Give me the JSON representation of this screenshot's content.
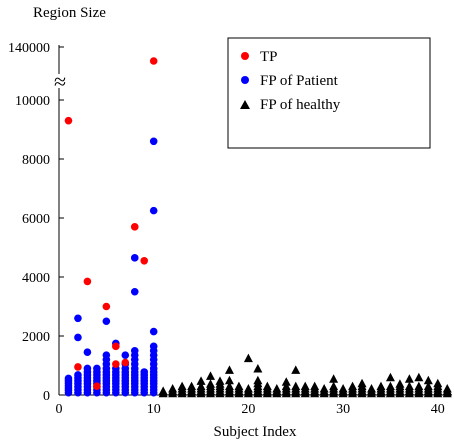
{
  "chart_data": {
    "type": "scatter",
    "title": "",
    "ylabel": "Region Size",
    "xlabel": "Subject Index",
    "xlim": [
      0,
      41.5
    ],
    "ylim": [
      0,
      11000
    ],
    "y_break": {
      "symbol": "≈",
      "upper_tick_value": 140000,
      "upper_tick_label": "140000"
    },
    "x_ticks": [
      0,
      10,
      20,
      30,
      40
    ],
    "x_tick_labels": [
      "0",
      "10",
      "20",
      "30",
      "40"
    ],
    "y_ticks": [
      0,
      2000,
      4000,
      6000,
      8000,
      10000
    ],
    "y_tick_labels": [
      "0",
      "2000",
      "4000",
      "6000",
      "8000",
      "10000"
    ],
    "legend_position": "top-right",
    "series": [
      {
        "name": "TP",
        "marker": "circle",
        "color": "#ff0000",
        "points": [
          {
            "x": 1,
            "y": 9300
          },
          {
            "x": 2,
            "y": 950
          },
          {
            "x": 3,
            "y": 3850
          },
          {
            "x": 4,
            "y": 300
          },
          {
            "x": 5,
            "y": 3000
          },
          {
            "x": 6,
            "y": 1050
          },
          {
            "x": 6,
            "y": 1650
          },
          {
            "x": 7,
            "y": 1100
          },
          {
            "x": 8,
            "y": 5700
          },
          {
            "x": 9,
            "y": 4550
          },
          {
            "x": 10,
            "y": 135000
          }
        ]
      },
      {
        "name": "FP of Patient",
        "marker": "circle",
        "color": "#0000ff",
        "points": [
          {
            "x": 1,
            "y": 80
          },
          {
            "x": 1,
            "y": 160
          },
          {
            "x": 1,
            "y": 240
          },
          {
            "x": 1,
            "y": 320
          },
          {
            "x": 1,
            "y": 400
          },
          {
            "x": 1,
            "y": 480
          },
          {
            "x": 1,
            "y": 560
          },
          {
            "x": 2,
            "y": 80
          },
          {
            "x": 2,
            "y": 180
          },
          {
            "x": 2,
            "y": 280
          },
          {
            "x": 2,
            "y": 380
          },
          {
            "x": 2,
            "y": 480
          },
          {
            "x": 2,
            "y": 580
          },
          {
            "x": 2,
            "y": 680
          },
          {
            "x": 2,
            "y": 1950
          },
          {
            "x": 2,
            "y": 2600
          },
          {
            "x": 3,
            "y": 80
          },
          {
            "x": 3,
            "y": 180
          },
          {
            "x": 3,
            "y": 280
          },
          {
            "x": 3,
            "y": 380
          },
          {
            "x": 3,
            "y": 480
          },
          {
            "x": 3,
            "y": 580
          },
          {
            "x": 3,
            "y": 680
          },
          {
            "x": 3,
            "y": 780
          },
          {
            "x": 3,
            "y": 900
          },
          {
            "x": 3,
            "y": 1450
          },
          {
            "x": 4,
            "y": 80
          },
          {
            "x": 4,
            "y": 180
          },
          {
            "x": 4,
            "y": 280
          },
          {
            "x": 4,
            "y": 380
          },
          {
            "x": 4,
            "y": 480
          },
          {
            "x": 4,
            "y": 580
          },
          {
            "x": 4,
            "y": 680
          },
          {
            "x": 4,
            "y": 780
          },
          {
            "x": 4,
            "y": 900
          },
          {
            "x": 5,
            "y": 80
          },
          {
            "x": 5,
            "y": 180
          },
          {
            "x": 5,
            "y": 280
          },
          {
            "x": 5,
            "y": 380
          },
          {
            "x": 5,
            "y": 480
          },
          {
            "x": 5,
            "y": 580
          },
          {
            "x": 5,
            "y": 680
          },
          {
            "x": 5,
            "y": 780
          },
          {
            "x": 5,
            "y": 900
          },
          {
            "x": 5,
            "y": 1050
          },
          {
            "x": 5,
            "y": 1200
          },
          {
            "x": 5,
            "y": 1350
          },
          {
            "x": 5,
            "y": 2500
          },
          {
            "x": 6,
            "y": 80
          },
          {
            "x": 6,
            "y": 180
          },
          {
            "x": 6,
            "y": 280
          },
          {
            "x": 6,
            "y": 380
          },
          {
            "x": 6,
            "y": 480
          },
          {
            "x": 6,
            "y": 580
          },
          {
            "x": 6,
            "y": 680
          },
          {
            "x": 6,
            "y": 780
          },
          {
            "x": 6,
            "y": 900
          },
          {
            "x": 6,
            "y": 1750
          },
          {
            "x": 7,
            "y": 80
          },
          {
            "x": 7,
            "y": 180
          },
          {
            "x": 7,
            "y": 280
          },
          {
            "x": 7,
            "y": 380
          },
          {
            "x": 7,
            "y": 480
          },
          {
            "x": 7,
            "y": 580
          },
          {
            "x": 7,
            "y": 680
          },
          {
            "x": 7,
            "y": 780
          },
          {
            "x": 7,
            "y": 900
          },
          {
            "x": 7,
            "y": 1050
          },
          {
            "x": 7,
            "y": 1350
          },
          {
            "x": 8,
            "y": 80
          },
          {
            "x": 8,
            "y": 180
          },
          {
            "x": 8,
            "y": 280
          },
          {
            "x": 8,
            "y": 380
          },
          {
            "x": 8,
            "y": 480
          },
          {
            "x": 8,
            "y": 580
          },
          {
            "x": 8,
            "y": 680
          },
          {
            "x": 8,
            "y": 780
          },
          {
            "x": 8,
            "y": 900
          },
          {
            "x": 8,
            "y": 1050
          },
          {
            "x": 8,
            "y": 1200
          },
          {
            "x": 8,
            "y": 1350
          },
          {
            "x": 8,
            "y": 1500
          },
          {
            "x": 8,
            "y": 3500
          },
          {
            "x": 8,
            "y": 4650
          },
          {
            "x": 9,
            "y": 80
          },
          {
            "x": 9,
            "y": 180
          },
          {
            "x": 9,
            "y": 280
          },
          {
            "x": 9,
            "y": 380
          },
          {
            "x": 9,
            "y": 480
          },
          {
            "x": 9,
            "y": 580
          },
          {
            "x": 9,
            "y": 680
          },
          {
            "x": 9,
            "y": 780
          },
          {
            "x": 10,
            "y": 80
          },
          {
            "x": 10,
            "y": 180
          },
          {
            "x": 10,
            "y": 280
          },
          {
            "x": 10,
            "y": 380
          },
          {
            "x": 10,
            "y": 480
          },
          {
            "x": 10,
            "y": 580
          },
          {
            "x": 10,
            "y": 680
          },
          {
            "x": 10,
            "y": 780
          },
          {
            "x": 10,
            "y": 900
          },
          {
            "x": 10,
            "y": 1050
          },
          {
            "x": 10,
            "y": 1200
          },
          {
            "x": 10,
            "y": 1350
          },
          {
            "x": 10,
            "y": 1500
          },
          {
            "x": 10,
            "y": 1650
          },
          {
            "x": 10,
            "y": 2150
          },
          {
            "x": 10,
            "y": 6250
          },
          {
            "x": 10,
            "y": 8600
          }
        ]
      },
      {
        "name": "FP of healthy",
        "marker": "triangle",
        "color": "#000000",
        "points": [
          {
            "x": 11,
            "y": 60
          },
          {
            "x": 11,
            "y": 140
          },
          {
            "x": 12,
            "y": 60
          },
          {
            "x": 12,
            "y": 140
          },
          {
            "x": 12,
            "y": 220
          },
          {
            "x": 13,
            "y": 60
          },
          {
            "x": 13,
            "y": 140
          },
          {
            "x": 13,
            "y": 220
          },
          {
            "x": 13,
            "y": 300
          },
          {
            "x": 14,
            "y": 60
          },
          {
            "x": 14,
            "y": 140
          },
          {
            "x": 14,
            "y": 220
          },
          {
            "x": 14,
            "y": 300
          },
          {
            "x": 15,
            "y": 60
          },
          {
            "x": 15,
            "y": 140
          },
          {
            "x": 15,
            "y": 220
          },
          {
            "x": 15,
            "y": 300
          },
          {
            "x": 15,
            "y": 480
          },
          {
            "x": 16,
            "y": 60
          },
          {
            "x": 16,
            "y": 140
          },
          {
            "x": 16,
            "y": 220
          },
          {
            "x": 16,
            "y": 300
          },
          {
            "x": 16,
            "y": 380
          },
          {
            "x": 16,
            "y": 650
          },
          {
            "x": 17,
            "y": 60
          },
          {
            "x": 17,
            "y": 140
          },
          {
            "x": 17,
            "y": 220
          },
          {
            "x": 17,
            "y": 300
          },
          {
            "x": 17,
            "y": 380
          },
          {
            "x": 17,
            "y": 480
          },
          {
            "x": 18,
            "y": 60
          },
          {
            "x": 18,
            "y": 140
          },
          {
            "x": 18,
            "y": 220
          },
          {
            "x": 18,
            "y": 300
          },
          {
            "x": 18,
            "y": 500
          },
          {
            "x": 18,
            "y": 850
          },
          {
            "x": 19,
            "y": 60
          },
          {
            "x": 19,
            "y": 140
          },
          {
            "x": 19,
            "y": 220
          },
          {
            "x": 19,
            "y": 300
          },
          {
            "x": 20,
            "y": 60
          },
          {
            "x": 20,
            "y": 140
          },
          {
            "x": 20,
            "y": 220
          },
          {
            "x": 20,
            "y": 1250
          },
          {
            "x": 21,
            "y": 60
          },
          {
            "x": 21,
            "y": 140
          },
          {
            "x": 21,
            "y": 220
          },
          {
            "x": 21,
            "y": 300
          },
          {
            "x": 21,
            "y": 400
          },
          {
            "x": 21,
            "y": 500
          },
          {
            "x": 21,
            "y": 900
          },
          {
            "x": 22,
            "y": 60
          },
          {
            "x": 22,
            "y": 140
          },
          {
            "x": 22,
            "y": 220
          },
          {
            "x": 22,
            "y": 300
          },
          {
            "x": 23,
            "y": 60
          },
          {
            "x": 23,
            "y": 140
          },
          {
            "x": 23,
            "y": 220
          },
          {
            "x": 24,
            "y": 60
          },
          {
            "x": 24,
            "y": 140
          },
          {
            "x": 24,
            "y": 220
          },
          {
            "x": 24,
            "y": 300
          },
          {
            "x": 24,
            "y": 450
          },
          {
            "x": 25,
            "y": 60
          },
          {
            "x": 25,
            "y": 140
          },
          {
            "x": 25,
            "y": 220
          },
          {
            "x": 25,
            "y": 300
          },
          {
            "x": 25,
            "y": 850
          },
          {
            "x": 26,
            "y": 60
          },
          {
            "x": 26,
            "y": 140
          },
          {
            "x": 26,
            "y": 220
          },
          {
            "x": 26,
            "y": 300
          },
          {
            "x": 27,
            "y": 60
          },
          {
            "x": 27,
            "y": 140
          },
          {
            "x": 27,
            "y": 220
          },
          {
            "x": 27,
            "y": 300
          },
          {
            "x": 28,
            "y": 60
          },
          {
            "x": 28,
            "y": 140
          },
          {
            "x": 28,
            "y": 220
          },
          {
            "x": 29,
            "y": 60
          },
          {
            "x": 29,
            "y": 140
          },
          {
            "x": 29,
            "y": 220
          },
          {
            "x": 29,
            "y": 300
          },
          {
            "x": 29,
            "y": 550
          },
          {
            "x": 30,
            "y": 60
          },
          {
            "x": 30,
            "y": 140
          },
          {
            "x": 30,
            "y": 220
          },
          {
            "x": 31,
            "y": 60
          },
          {
            "x": 31,
            "y": 140
          },
          {
            "x": 31,
            "y": 220
          },
          {
            "x": 31,
            "y": 300
          },
          {
            "x": 32,
            "y": 60
          },
          {
            "x": 32,
            "y": 140
          },
          {
            "x": 32,
            "y": 220
          },
          {
            "x": 32,
            "y": 300
          },
          {
            "x": 32,
            "y": 400
          },
          {
            "x": 33,
            "y": 60
          },
          {
            "x": 33,
            "y": 140
          },
          {
            "x": 33,
            "y": 220
          },
          {
            "x": 34,
            "y": 60
          },
          {
            "x": 34,
            "y": 140
          },
          {
            "x": 34,
            "y": 220
          },
          {
            "x": 34,
            "y": 300
          },
          {
            "x": 35,
            "y": 60
          },
          {
            "x": 35,
            "y": 140
          },
          {
            "x": 35,
            "y": 220
          },
          {
            "x": 35,
            "y": 300
          },
          {
            "x": 35,
            "y": 600
          },
          {
            "x": 36,
            "y": 60
          },
          {
            "x": 36,
            "y": 140
          },
          {
            "x": 36,
            "y": 220
          },
          {
            "x": 36,
            "y": 300
          },
          {
            "x": 36,
            "y": 380
          },
          {
            "x": 37,
            "y": 60
          },
          {
            "x": 37,
            "y": 140
          },
          {
            "x": 37,
            "y": 220
          },
          {
            "x": 37,
            "y": 300
          },
          {
            "x": 37,
            "y": 550
          },
          {
            "x": 38,
            "y": 60
          },
          {
            "x": 38,
            "y": 140
          },
          {
            "x": 38,
            "y": 220
          },
          {
            "x": 38,
            "y": 300
          },
          {
            "x": 38,
            "y": 600
          },
          {
            "x": 39,
            "y": 60
          },
          {
            "x": 39,
            "y": 140
          },
          {
            "x": 39,
            "y": 220
          },
          {
            "x": 39,
            "y": 300
          },
          {
            "x": 39,
            "y": 500
          },
          {
            "x": 40,
            "y": 60
          },
          {
            "x": 40,
            "y": 140
          },
          {
            "x": 40,
            "y": 220
          },
          {
            "x": 40,
            "y": 300
          },
          {
            "x": 40,
            "y": 400
          },
          {
            "x": 41,
            "y": 60
          },
          {
            "x": 41,
            "y": 140
          },
          {
            "x": 41,
            "y": 220
          }
        ]
      }
    ]
  }
}
